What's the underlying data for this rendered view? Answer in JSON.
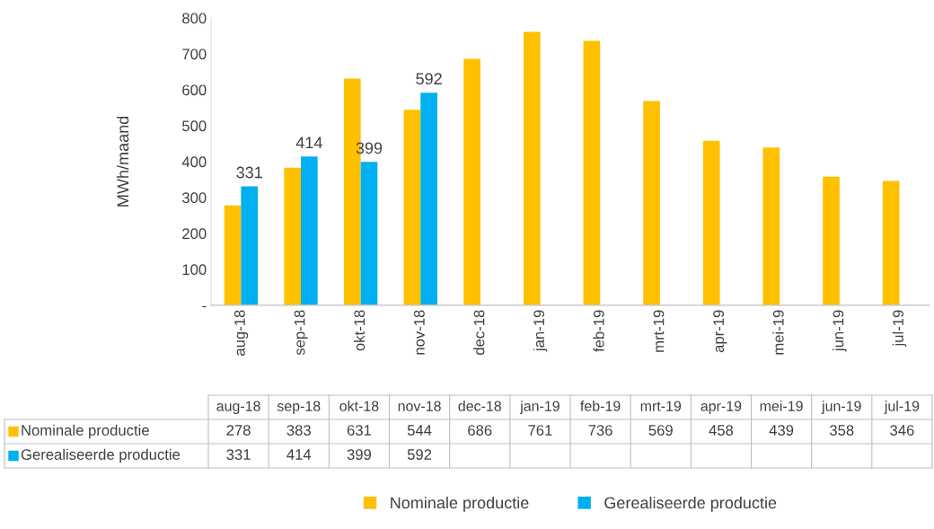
{
  "chart_data": {
    "type": "bar",
    "ylabel": "MWh/maand",
    "categories": [
      "aug-18",
      "sep-18",
      "okt-18",
      "nov-18",
      "dec-18",
      "jan-19",
      "feb-19",
      "mrt-19",
      "apr-19",
      "mei-19",
      "jun-19",
      "jul-19"
    ],
    "series": [
      {
        "name": "Nominale productie",
        "color": "#ffc000",
        "values": [
          278,
          383,
          631,
          544,
          686,
          761,
          736,
          569,
          458,
          439,
          358,
          346
        ]
      },
      {
        "name": "Gerealiseerde productie",
        "color": "#00b0f0",
        "values": [
          331,
          414,
          399,
          592,
          null,
          null,
          null,
          null,
          null,
          null,
          null,
          null
        ]
      }
    ],
    "annotations": [
      {
        "text": "331",
        "x": "aug-18",
        "y": 331
      },
      {
        "text": "414",
        "x": "sep-18",
        "y": 414
      },
      {
        "text": "399",
        "x": "okt-18",
        "y": 399
      },
      {
        "text": "592",
        "x": "nov-18",
        "y": 592
      }
    ],
    "ylim": [
      0,
      800
    ],
    "yticks": [
      {
        "value": 0,
        "label": "-"
      },
      100,
      200,
      300,
      400,
      500,
      600,
      700,
      800
    ],
    "grid": false,
    "legend": "bottom",
    "data_labels": true
  }
}
